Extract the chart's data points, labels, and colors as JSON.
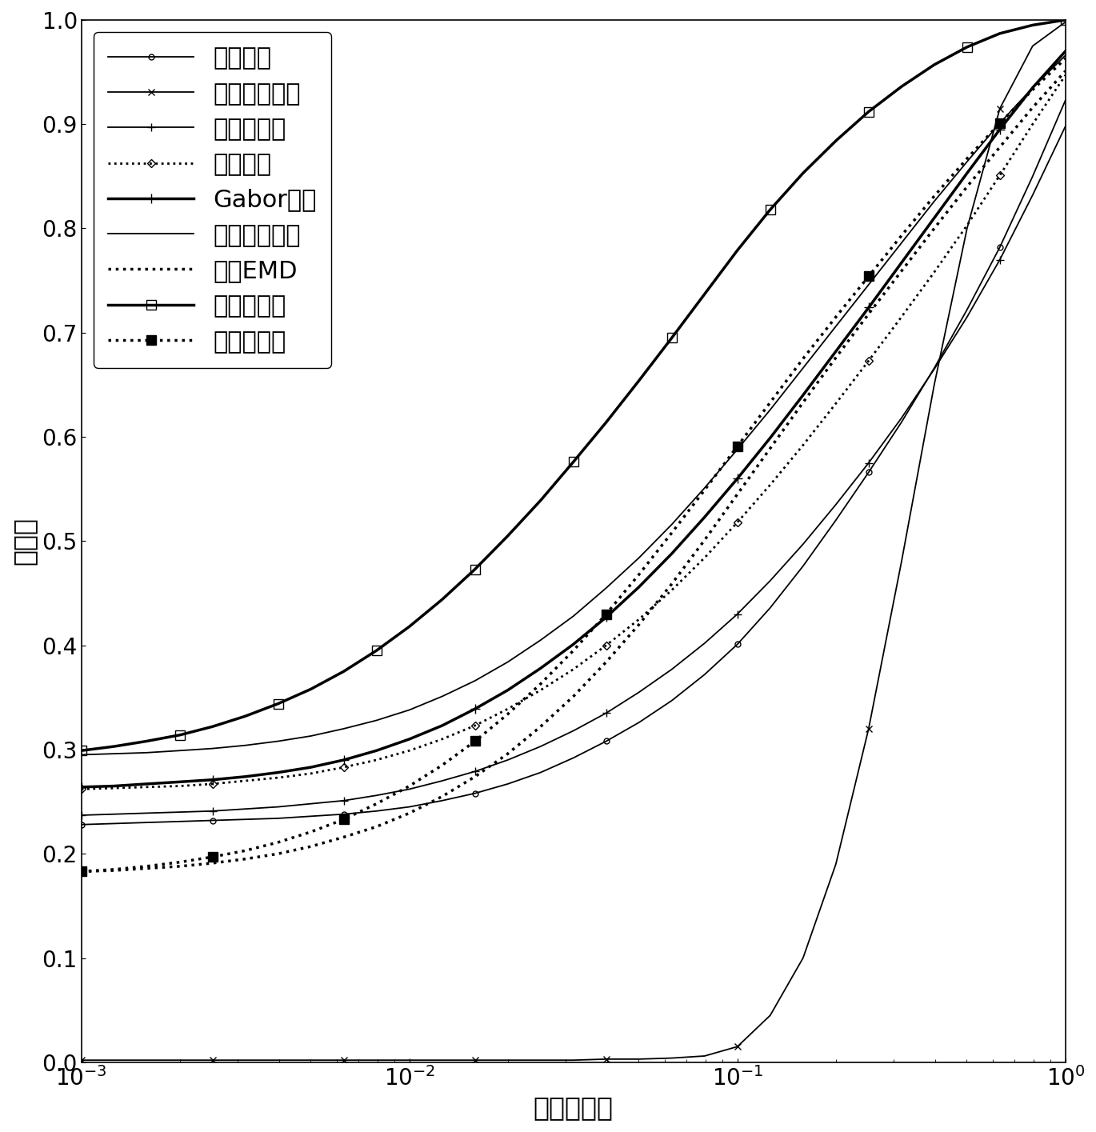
{
  "title": "",
  "xlabel": "错误接受率",
  "ylabel": "验证率",
  "xlim": [
    0.001,
    1.0
  ],
  "ylim": [
    0.0,
    1.0
  ],
  "series": [
    {
      "label": "原始图像",
      "linestyle": "-",
      "linewidth": 1.3,
      "marker": "o",
      "markersize": 5,
      "markevery": 4,
      "color": "#000000",
      "filled": false,
      "x": [
        0.001,
        0.00126,
        0.00158,
        0.002,
        0.00251,
        0.00316,
        0.00398,
        0.00501,
        0.00631,
        0.00794,
        0.01,
        0.01259,
        0.01585,
        0.01995,
        0.02512,
        0.03162,
        0.03981,
        0.05012,
        0.0631,
        0.07943,
        0.1,
        0.12589,
        0.15849,
        0.19953,
        0.25119,
        0.31623,
        0.39811,
        0.50119,
        0.63096,
        0.79433,
        1.0
      ],
      "y": [
        0.228,
        0.229,
        0.23,
        0.231,
        0.232,
        0.233,
        0.234,
        0.236,
        0.238,
        0.241,
        0.245,
        0.251,
        0.258,
        0.267,
        0.278,
        0.292,
        0.308,
        0.326,
        0.347,
        0.372,
        0.401,
        0.436,
        0.476,
        0.52,
        0.566,
        0.614,
        0.666,
        0.722,
        0.782,
        0.85,
        0.923
      ]
    },
    {
      "label": "加权高斯滤波",
      "linestyle": "-",
      "linewidth": 1.3,
      "marker": "x",
      "markersize": 6,
      "markevery": 4,
      "color": "#000000",
      "filled": false,
      "x": [
        0.001,
        0.00126,
        0.00158,
        0.002,
        0.00251,
        0.00316,
        0.00398,
        0.00501,
        0.00631,
        0.00794,
        0.01,
        0.01259,
        0.01585,
        0.01995,
        0.02512,
        0.03162,
        0.03981,
        0.05012,
        0.0631,
        0.07943,
        0.1,
        0.12589,
        0.15849,
        0.19953,
        0.25119,
        0.31623,
        0.39811,
        0.50119,
        0.63096,
        0.79433,
        1.0
      ],
      "y": [
        0.002,
        0.002,
        0.002,
        0.002,
        0.002,
        0.002,
        0.002,
        0.002,
        0.002,
        0.002,
        0.002,
        0.002,
        0.002,
        0.002,
        0.002,
        0.002,
        0.003,
        0.003,
        0.004,
        0.006,
        0.015,
        0.045,
        0.1,
        0.19,
        0.32,
        0.48,
        0.65,
        0.8,
        0.915,
        0.975,
        0.998
      ]
    },
    {
      "label": "总变分模型",
      "linestyle": "-",
      "linewidth": 1.3,
      "marker": "+",
      "markersize": 7,
      "markevery": 4,
      "color": "#000000",
      "filled": false,
      "x": [
        0.001,
        0.00126,
        0.00158,
        0.002,
        0.00251,
        0.00316,
        0.00398,
        0.00501,
        0.00631,
        0.00794,
        0.01,
        0.01259,
        0.01585,
        0.01995,
        0.02512,
        0.03162,
        0.03981,
        0.05012,
        0.0631,
        0.07943,
        0.1,
        0.12589,
        0.15849,
        0.19953,
        0.25119,
        0.31623,
        0.39811,
        0.50119,
        0.63096,
        0.79433,
        1.0
      ],
      "y": [
        0.237,
        0.238,
        0.239,
        0.24,
        0.241,
        0.243,
        0.245,
        0.248,
        0.251,
        0.256,
        0.262,
        0.27,
        0.279,
        0.29,
        0.303,
        0.318,
        0.335,
        0.355,
        0.377,
        0.402,
        0.43,
        0.462,
        0.497,
        0.535,
        0.575,
        0.618,
        0.665,
        0.715,
        0.77,
        0.832,
        0.898
      ]
    },
    {
      "label": "小波变换",
      "linestyle": ":",
      "linewidth": 2.0,
      "marker": "D",
      "markersize": 5,
      "markevery": 4,
      "color": "#000000",
      "filled": false,
      "x": [
        0.001,
        0.00126,
        0.00158,
        0.002,
        0.00251,
        0.00316,
        0.00398,
        0.00501,
        0.00631,
        0.00794,
        0.01,
        0.01259,
        0.01585,
        0.01995,
        0.02512,
        0.03162,
        0.03981,
        0.05012,
        0.0631,
        0.07943,
        0.1,
        0.12589,
        0.15849,
        0.19953,
        0.25119,
        0.31623,
        0.39811,
        0.50119,
        0.63096,
        0.79433,
        1.0
      ],
      "y": [
        0.262,
        0.263,
        0.264,
        0.265,
        0.267,
        0.27,
        0.273,
        0.277,
        0.283,
        0.29,
        0.299,
        0.31,
        0.323,
        0.339,
        0.357,
        0.377,
        0.4,
        0.425,
        0.453,
        0.484,
        0.518,
        0.554,
        0.592,
        0.632,
        0.673,
        0.715,
        0.758,
        0.803,
        0.851,
        0.9,
        0.947
      ]
    },
    {
      "label": "Gabor变换",
      "linestyle": "-",
      "linewidth": 2.5,
      "marker": "+",
      "markersize": 9,
      "markevery": 4,
      "color": "#000000",
      "filled": false,
      "x": [
        0.001,
        0.00126,
        0.00158,
        0.002,
        0.00251,
        0.00316,
        0.00398,
        0.00501,
        0.00631,
        0.00794,
        0.01,
        0.01259,
        0.01585,
        0.01995,
        0.02512,
        0.03162,
        0.03981,
        0.05012,
        0.0631,
        0.07943,
        0.1,
        0.12589,
        0.15849,
        0.19953,
        0.25119,
        0.31623,
        0.39811,
        0.50119,
        0.63096,
        0.79433,
        1.0
      ],
      "y": [
        0.264,
        0.265,
        0.267,
        0.269,
        0.271,
        0.274,
        0.278,
        0.283,
        0.29,
        0.299,
        0.31,
        0.323,
        0.339,
        0.357,
        0.378,
        0.401,
        0.427,
        0.456,
        0.488,
        0.523,
        0.56,
        0.599,
        0.64,
        0.682,
        0.724,
        0.767,
        0.81,
        0.853,
        0.895,
        0.935,
        0.97
      ]
    },
    {
      "label": "离散余弦变换",
      "linestyle": "-",
      "linewidth": 1.3,
      "marker": null,
      "markersize": 0,
      "markevery": 4,
      "color": "#000000",
      "filled": false,
      "x": [
        0.001,
        0.00126,
        0.00158,
        0.002,
        0.00251,
        0.00316,
        0.00398,
        0.00501,
        0.00631,
        0.00794,
        0.01,
        0.01259,
        0.01585,
        0.01995,
        0.02512,
        0.03162,
        0.03981,
        0.05012,
        0.0631,
        0.07943,
        0.1,
        0.12589,
        0.15849,
        0.19953,
        0.25119,
        0.31623,
        0.39811,
        0.50119,
        0.63096,
        0.79433,
        1.0
      ],
      "y": [
        0.295,
        0.296,
        0.297,
        0.299,
        0.301,
        0.304,
        0.308,
        0.313,
        0.32,
        0.328,
        0.338,
        0.351,
        0.366,
        0.384,
        0.405,
        0.428,
        0.455,
        0.484,
        0.516,
        0.551,
        0.588,
        0.626,
        0.666,
        0.706,
        0.746,
        0.786,
        0.826,
        0.864,
        0.901,
        0.935,
        0.966
      ]
    },
    {
      "label": "原始EMD",
      "linestyle": ":",
      "linewidth": 2.5,
      "marker": null,
      "markersize": 0,
      "markevery": 4,
      "color": "#000000",
      "filled": false,
      "x": [
        0.001,
        0.00126,
        0.00158,
        0.002,
        0.00251,
        0.00316,
        0.00398,
        0.00501,
        0.00631,
        0.00794,
        0.01,
        0.01259,
        0.01585,
        0.01995,
        0.02512,
        0.03162,
        0.03981,
        0.05012,
        0.0631,
        0.07943,
        0.1,
        0.12589,
        0.15849,
        0.19953,
        0.25119,
        0.31623,
        0.39811,
        0.50119,
        0.63096,
        0.79433,
        1.0
      ],
      "y": [
        0.183,
        0.184,
        0.186,
        0.188,
        0.191,
        0.195,
        0.2,
        0.207,
        0.216,
        0.226,
        0.239,
        0.255,
        0.274,
        0.296,
        0.322,
        0.351,
        0.384,
        0.42,
        0.459,
        0.501,
        0.545,
        0.589,
        0.633,
        0.676,
        0.718,
        0.759,
        0.8,
        0.84,
        0.878,
        0.916,
        0.951
      ]
    },
    {
      "label": "本发明方法",
      "linestyle": "-",
      "linewidth": 2.5,
      "marker": "s",
      "markersize": 9,
      "markevery": 3,
      "color": "#000000",
      "filled": false,
      "x": [
        0.001,
        0.00126,
        0.00158,
        0.002,
        0.00251,
        0.00316,
        0.00398,
        0.00501,
        0.00631,
        0.00794,
        0.01,
        0.01259,
        0.01585,
        0.01995,
        0.02512,
        0.03162,
        0.03981,
        0.05012,
        0.0631,
        0.07943,
        0.1,
        0.12589,
        0.15849,
        0.19953,
        0.25119,
        0.31623,
        0.39811,
        0.50119,
        0.63096,
        0.79433,
        1.0
      ],
      "y": [
        0.299,
        0.303,
        0.308,
        0.314,
        0.322,
        0.332,
        0.344,
        0.358,
        0.375,
        0.395,
        0.418,
        0.444,
        0.473,
        0.505,
        0.539,
        0.576,
        0.614,
        0.654,
        0.695,
        0.737,
        0.779,
        0.818,
        0.853,
        0.884,
        0.912,
        0.936,
        0.957,
        0.974,
        0.987,
        0.995,
        1.0
      ]
    },
    {
      "label": "轮廓波变换",
      "linestyle": ":",
      "linewidth": 2.5,
      "marker": "s",
      "markersize": 8,
      "markevery": 4,
      "color": "#000000",
      "filled": true,
      "x": [
        0.001,
        0.00126,
        0.00158,
        0.002,
        0.00251,
        0.00316,
        0.00398,
        0.00501,
        0.00631,
        0.00794,
        0.01,
        0.01259,
        0.01585,
        0.01995,
        0.02512,
        0.03162,
        0.03981,
        0.05012,
        0.0631,
        0.07943,
        0.1,
        0.12589,
        0.15849,
        0.19953,
        0.25119,
        0.31623,
        0.39811,
        0.50119,
        0.63096,
        0.79433,
        1.0
      ],
      "y": [
        0.183,
        0.185,
        0.188,
        0.192,
        0.197,
        0.203,
        0.211,
        0.221,
        0.233,
        0.248,
        0.265,
        0.285,
        0.308,
        0.334,
        0.363,
        0.395,
        0.43,
        0.468,
        0.508,
        0.549,
        0.591,
        0.633,
        0.675,
        0.715,
        0.754,
        0.793,
        0.831,
        0.867,
        0.901,
        0.933,
        0.963
      ]
    }
  ],
  "legend_loc": "upper left",
  "font_size": 22,
  "tick_font_size": 20,
  "label_fontsize": 24
}
